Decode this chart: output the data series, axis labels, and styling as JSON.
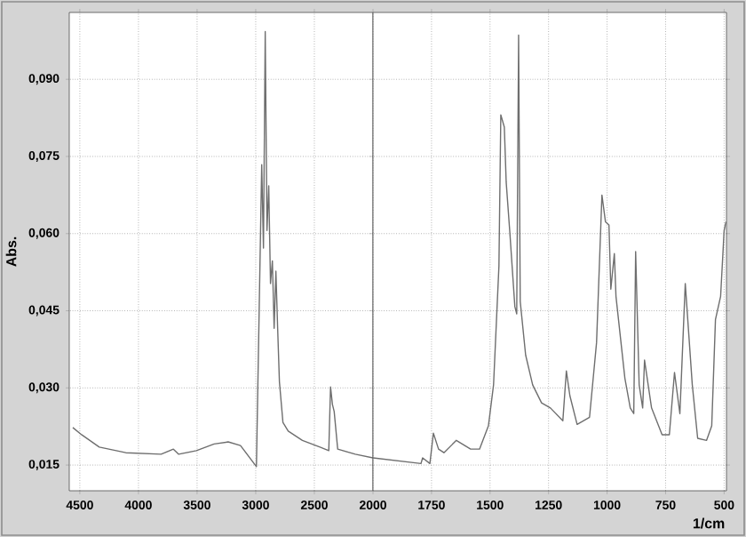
{
  "chart_data": [
    {
      "type": "line",
      "ylabel": "Abs.",
      "x": [
        4560,
        4485,
        4334,
        4108,
        3807,
        3702,
        3657,
        3506,
        3355,
        3235,
        3130,
        2994,
        2949,
        2934,
        2919,
        2904,
        2889,
        2874,
        2858,
        2843,
        2828,
        2813,
        2798,
        2768,
        2723,
        2602,
        2452,
        2377,
        2362,
        2346,
        2331,
        2301,
        2151,
        2000
      ],
      "series": [
        {
          "color": "#6e6e6e",
          "values": [
            0.0223,
            0.0209,
            0.0185,
            0.0174,
            0.0171,
            0.0181,
            0.0171,
            0.0178,
            0.0191,
            0.0195,
            0.0188,
            0.0147,
            0.0734,
            0.0572,
            0.0993,
            0.0606,
            0.0693,
            0.0503,
            0.0547,
            0.0416,
            0.0527,
            0.0416,
            0.0312,
            0.0233,
            0.0216,
            0.0198,
            0.0185,
            0.0178,
            0.0302,
            0.0268,
            0.0254,
            0.0181,
            0.0171,
            0.0164
          ]
        }
      ],
      "xlim": [
        4590,
        2000
      ],
      "ylim": [
        0.01,
        0.103
      ],
      "xticks": [
        4500,
        4000,
        3500,
        3000,
        2500
      ],
      "yticks": [
        {
          "value": 0.015,
          "label": "0,015"
        },
        {
          "value": 0.03,
          "label": "0,030"
        },
        {
          "value": 0.045,
          "label": "0,045"
        },
        {
          "value": 0.06,
          "label": "0,060"
        },
        {
          "value": 0.075,
          "label": "0,075"
        },
        {
          "value": 0.09,
          "label": "0,090"
        }
      ],
      "grid": true,
      "marker": "none",
      "line_style": "solid"
    },
    {
      "type": "line",
      "xlabel": "1/cm",
      "x": [
        2000,
        1795,
        1788,
        1757,
        1742,
        1720,
        1697,
        1644,
        1583,
        1545,
        1507,
        1485,
        1462,
        1454,
        1439,
        1431,
        1416,
        1394,
        1386,
        1378,
        1371,
        1348,
        1318,
        1280,
        1242,
        1189,
        1174,
        1159,
        1128,
        1075,
        1045,
        1022,
        1007,
        992,
        984,
        969,
        962,
        924,
        901,
        886,
        878,
        863,
        848,
        840,
        810,
        765,
        734,
        712,
        689,
        666,
        636,
        613,
        575,
        553,
        537,
        515,
        500,
        492
      ],
      "series": [
        {
          "color": "#6e6e6e",
          "values": [
            0.0164,
            0.0153,
            0.0164,
            0.0153,
            0.0212,
            0.0181,
            0.0174,
            0.0198,
            0.0181,
            0.0181,
            0.0226,
            0.0306,
            0.0537,
            0.0831,
            0.0807,
            0.07,
            0.0606,
            0.0458,
            0.0444,
            0.0986,
            0.0468,
            0.0364,
            0.0306,
            0.0271,
            0.0261,
            0.0236,
            0.0333,
            0.0285,
            0.0229,
            0.0243,
            0.0388,
            0.0675,
            0.0623,
            0.0617,
            0.0492,
            0.0561,
            0.0478,
            0.0319,
            0.0261,
            0.025,
            0.0565,
            0.0306,
            0.0261,
            0.0354,
            0.0261,
            0.0209,
            0.0209,
            0.033,
            0.025,
            0.0503,
            0.0306,
            0.0202,
            0.0198,
            0.0226,
            0.0433,
            0.0478,
            0.0606,
            0.0623
          ]
        }
      ],
      "xlim": [
        2000,
        490
      ],
      "ylim": [
        0.01,
        0.103
      ],
      "xticks": [
        2000,
        1750,
        1500,
        1250,
        1000,
        750,
        500
      ],
      "yticks": [
        {
          "value": 0.015,
          "label": null
        },
        {
          "value": 0.03,
          "label": null
        },
        {
          "value": 0.045,
          "label": null
        },
        {
          "value": 0.06,
          "label": null
        },
        {
          "value": 0.075,
          "label": null
        },
        {
          "value": 0.09,
          "label": null
        }
      ],
      "tick_labels": "x",
      "grid": true,
      "marker": "none",
      "line_style": "solid"
    }
  ]
}
